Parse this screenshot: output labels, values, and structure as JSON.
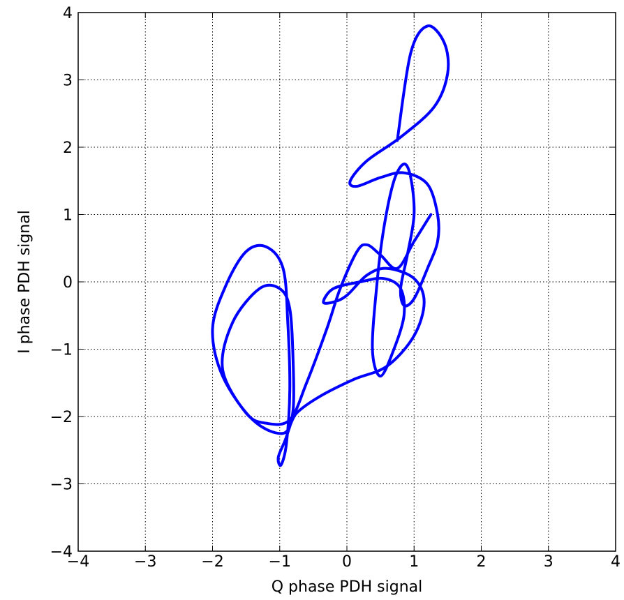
{
  "chart_data": {
    "type": "line",
    "xlabel": "Q phase PDH signal",
    "ylabel": "I phase PDH signal",
    "xlim": [
      -4,
      4
    ],
    "ylim": [
      -4,
      4
    ],
    "xticks": [
      {
        "value": -4,
        "label": "−4"
      },
      {
        "value": -3,
        "label": "−3"
      },
      {
        "value": -2,
        "label": "−2"
      },
      {
        "value": -1,
        "label": "−1"
      },
      0,
      1,
      2,
      3,
      4
    ],
    "yticks": [
      {
        "value": -4,
        "label": "−4"
      },
      {
        "value": -3,
        "label": "−3"
      },
      {
        "value": -2,
        "label": "−2"
      },
      {
        "value": -1,
        "label": "−1"
      },
      0,
      1,
      2,
      3,
      4
    ],
    "grid": true,
    "series": [
      {
        "color": "#0000ff",
        "x": [
          0.75,
          0.95,
          1.2,
          1.45,
          1.5,
          1.3,
          0.8,
          0.3,
          0.05,
          0.15,
          0.5,
          0.85,
          1.2,
          1.35,
          1.35,
          1.2,
          1.0,
          0.85,
          0.8,
          0.9,
          1.0,
          0.95,
          0.85,
          0.7,
          0.55,
          0.45,
          0.38,
          0.5,
          0.7,
          0.85,
          0.8,
          0.55,
          0.2,
          -0.2,
          -0.35,
          -0.2,
          0.0,
          0.3,
          0.6,
          1.0,
          1.15,
          1.0,
          0.6,
          0.1,
          -0.4,
          -0.75,
          -0.95,
          -1.4,
          -1.85,
          -2.0,
          -1.8,
          -1.5,
          -1.2,
          -0.95,
          -0.88,
          -0.85,
          -0.9,
          -0.98,
          -1.02,
          -0.9,
          -0.8,
          -0.8,
          -0.85,
          -1.0,
          -1.3,
          -1.7,
          -1.85,
          -1.5,
          -1.2,
          -0.85,
          -0.6,
          -0.3,
          -0.1,
          0.15,
          0.3,
          0.5,
          0.75,
          1.0,
          1.25
        ],
        "y": [
          2.1,
          3.4,
          3.8,
          3.55,
          3.1,
          2.6,
          2.15,
          1.8,
          1.5,
          1.42,
          1.55,
          1.62,
          1.45,
          1.0,
          0.6,
          0.2,
          -0.25,
          -0.35,
          -0.1,
          0.4,
          1.0,
          1.55,
          1.75,
          1.5,
          0.8,
          0.0,
          -1.0,
          -1.4,
          -1.0,
          -0.5,
          -0.1,
          0.05,
          0.0,
          -0.1,
          -0.3,
          -0.3,
          -0.2,
          0.1,
          0.2,
          0.05,
          -0.3,
          -0.8,
          -1.25,
          -1.45,
          -1.7,
          -1.95,
          -2.25,
          -2.05,
          -1.4,
          -0.7,
          -0.05,
          0.45,
          0.52,
          0.2,
          -0.6,
          -1.6,
          -2.4,
          -2.72,
          -2.6,
          -2.3,
          -1.9,
          -1.2,
          -0.4,
          -0.1,
          -0.1,
          -0.6,
          -1.3,
          -1.95,
          -2.1,
          -2.05,
          -1.5,
          -0.7,
          -0.1,
          0.45,
          0.55,
          0.4,
          0.2,
          0.6,
          1.0
        ]
      }
    ]
  }
}
